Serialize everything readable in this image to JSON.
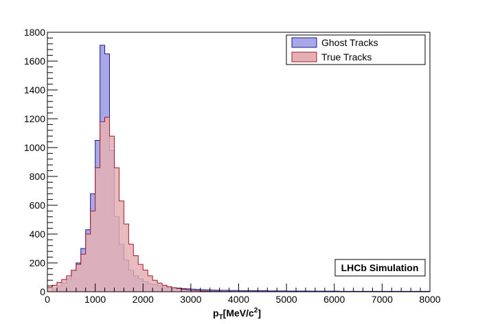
{
  "chart_data": {
    "type": "bar",
    "title": "",
    "xlabel_main": "p",
    "xlabel_sub": "T",
    "xlabel_unit": "[MeV/c",
    "xlabel_sup": "2",
    "xlabel_close": "]",
    "ylabel": "",
    "xlim": [
      0,
      8000
    ],
    "ylim": [
      0,
      1800
    ],
    "bin_width": 100,
    "x_ticks": [
      "0",
      "1000",
      "2000",
      "3000",
      "4000",
      "5000",
      "6000",
      "7000",
      "8000"
    ],
    "y_ticks": [
      "0",
      "200",
      "400",
      "600",
      "800",
      "1000",
      "1200",
      "1400",
      "1600",
      "1800"
    ],
    "legend_position": "top-right",
    "annotation": "LHCb Simulation",
    "series": [
      {
        "name": "Ghost Tracks",
        "fill": "#a8a8e8",
        "line": "#1a1a8c",
        "values": [
          0,
          20,
          40,
          60,
          90,
          140,
          200,
          300,
          430,
          680,
          1050,
          1710,
          1650,
          980,
          520,
          330,
          220,
          150,
          110,
          90,
          70,
          55,
          50,
          40,
          35,
          30,
          28,
          25,
          22,
          20,
          18,
          16,
          14,
          13,
          12,
          11,
          10,
          10,
          9,
          9,
          8,
          8,
          8,
          7,
          7,
          7,
          6,
          6,
          6,
          6,
          5,
          5,
          5,
          5,
          5,
          4,
          4,
          4,
          4,
          4,
          4,
          3,
          3,
          3,
          3,
          3,
          3,
          3,
          3,
          3,
          3,
          3,
          3,
          3,
          3,
          3,
          3,
          3,
          3,
          3
        ]
      },
      {
        "name": "True Tracks",
        "fill": "#e4b0b4",
        "line": "#a01a2a",
        "values": [
          30,
          45,
          65,
          85,
          110,
          150,
          190,
          260,
          400,
          560,
          860,
          1180,
          1210,
          1080,
          860,
          630,
          470,
          330,
          250,
          190,
          150,
          110,
          80,
          60,
          45,
          35,
          28,
          22,
          16,
          12,
          9,
          7,
          5,
          4,
          3,
          3,
          2,
          2,
          2,
          1,
          1,
          1,
          1,
          1,
          1,
          1,
          1,
          1,
          0,
          0,
          0,
          0,
          0,
          0,
          0,
          0,
          0,
          0,
          0,
          0,
          0,
          0,
          0,
          0,
          0,
          0,
          0,
          0,
          0,
          0,
          0,
          0,
          0,
          0,
          0,
          0,
          0,
          0,
          0,
          0
        ]
      }
    ]
  }
}
